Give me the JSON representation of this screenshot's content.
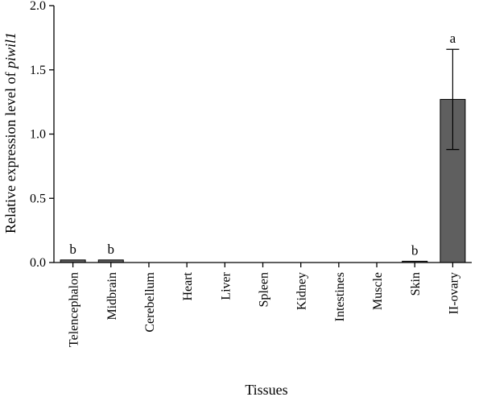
{
  "chart_data": {
    "type": "bar",
    "xlabel": "Tissues",
    "ylabel_prefix": "Relative expression level of ",
    "ylabel_gene": "piwil1",
    "ylim": [
      0,
      2.0
    ],
    "yticks": [
      0.0,
      0.5,
      1.0,
      1.5,
      2.0
    ],
    "ytick_labels": [
      "0.0",
      "0.5",
      "1.0",
      "1.5",
      "2.0"
    ],
    "categories": [
      "Telencephalon",
      "Midbrain",
      "Cerebellum",
      "Heart",
      "Liver",
      "Spleen",
      "Kidney",
      "Intestines",
      "Muscle",
      "Skin",
      "II-ovary"
    ],
    "values": [
      0.02,
      0.02,
      0.0,
      0.0,
      0.0,
      0.0,
      0.0,
      0.0,
      0.0,
      0.01,
      1.27
    ],
    "errors": [
      0,
      0,
      0,
      0,
      0,
      0,
      0,
      0,
      0,
      0,
      0.39
    ],
    "sig_labels": [
      "b",
      "b",
      "",
      "",
      "",
      "",
      "",
      "",
      "",
      "b",
      "a"
    ],
    "bar_color": "#5f5f5f",
    "grid": false
  }
}
